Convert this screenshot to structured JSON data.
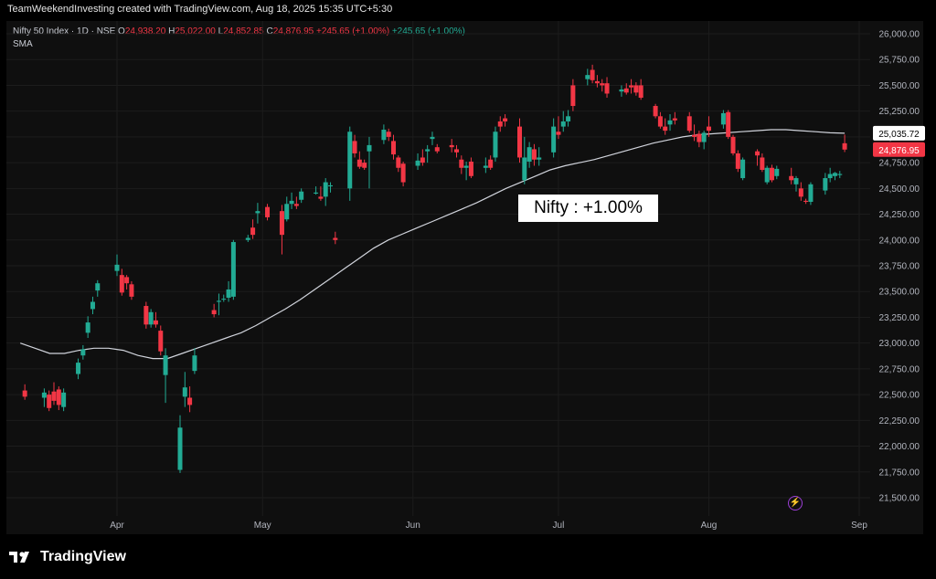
{
  "header": {
    "caption": "TeamWeekendInvesting created with TradingView.com, Aug 18, 2025 15:35 UTC+5:30",
    "symbol": "Nifty 50 Index · 1D · NSE",
    "o_label": "O",
    "o_value": "24,938.20",
    "h_label": "H",
    "h_value": "25,022.00",
    "l_label": "L",
    "l_value": "24,852.85",
    "c_label": "C",
    "c_value": "24,876.95",
    "change": "+245.65 (+1.00%)",
    "change2": "+245.65 (+1.00%)",
    "sma_label": "SMA"
  },
  "annotation": "Nifty : +1.00%",
  "brand": "TradingView",
  "colors": {
    "up": "#22ab94",
    "down": "#f23645",
    "sma": "#d1d4dc",
    "sma_tag": "#ffffff",
    "last_tag": "#f23645"
  },
  "chart_data": {
    "type": "candlestick",
    "ylim": [
      21400,
      26150
    ],
    "y_ticks": [
      "26,000.00",
      "25,750.00",
      "25,500.00",
      "25,250.00",
      "25,000.00",
      "24,750.00",
      "24,500.00",
      "24,250.00",
      "24,000.00",
      "23,750.00",
      "23,500.00",
      "23,250.00",
      "23,000.00",
      "22,750.00",
      "22,500.00",
      "22,250.00",
      "22,000.00",
      "21,750.00",
      "21,500.00"
    ],
    "y_tick_values": [
      26000,
      25750,
      25500,
      25250,
      25000,
      24750,
      24500,
      24250,
      24000,
      23750,
      23500,
      23250,
      23000,
      22750,
      22500,
      22250,
      22000,
      21750,
      21500
    ],
    "x_ticks": [
      "Apr",
      "May",
      "Jun",
      "Jul",
      "Aug",
      "Sep"
    ],
    "x_tick_dates": [
      "2025-04-01",
      "2025-05-01",
      "2025-06-01",
      "2025-07-01",
      "2025-08-01",
      "2025-09-01"
    ],
    "sma_last": "25,035.72",
    "last_price": "24,876.95",
    "sma_values": [
      23000,
      22950,
      22900,
      22900,
      22930,
      22950,
      22950,
      22930,
      22880,
      22850,
      22850,
      22900,
      22950,
      23000,
      23050,
      23100,
      23170,
      23250,
      23330,
      23420,
      23520,
      23620,
      23720,
      23820,
      23920,
      24000,
      24060,
      24120,
      24180,
      24240,
      24300,
      24360,
      24430,
      24500,
      24560,
      24620,
      24680,
      24720,
      24750,
      24780,
      24820,
      24860,
      24900,
      24940,
      24970,
      25000,
      25020,
      25030,
      25040,
      25050,
      25060,
      25070,
      25070,
      25060,
      25050,
      25040,
      25035.72
    ],
    "candles": [
      {
        "d": "2025-03-13",
        "o": 22540,
        "h": 22600,
        "l": 22450,
        "c": 22480
      },
      {
        "d": "2025-03-17",
        "o": 22470,
        "h": 22560,
        "l": 22380,
        "c": 22520
      },
      {
        "d": "2025-03-18",
        "o": 22500,
        "h": 22540,
        "l": 22340,
        "c": 22370
      },
      {
        "d": "2025-03-19",
        "o": 22530,
        "h": 22620,
        "l": 22400,
        "c": 22440
      },
      {
        "d": "2025-03-20",
        "o": 22550,
        "h": 22580,
        "l": 22350,
        "c": 22400
      },
      {
        "d": "2025-03-21",
        "o": 22380,
        "h": 22560,
        "l": 22340,
        "c": 22520
      },
      {
        "d": "2025-03-24",
        "o": 22700,
        "h": 22850,
        "l": 22650,
        "c": 22810
      },
      {
        "d": "2025-03-25",
        "o": 22880,
        "h": 22980,
        "l": 22840,
        "c": 22940
      },
      {
        "d": "2025-03-26",
        "o": 23100,
        "h": 23260,
        "l": 23050,
        "c": 23200
      },
      {
        "d": "2025-03-27",
        "o": 23330,
        "h": 23450,
        "l": 23280,
        "c": 23400
      },
      {
        "d": "2025-03-28",
        "o": 23510,
        "h": 23610,
        "l": 23450,
        "c": 23580
      },
      {
        "d": "2025-04-01",
        "o": 23700,
        "h": 23860,
        "l": 23650,
        "c": 23760
      },
      {
        "d": "2025-04-02",
        "o": 23660,
        "h": 23720,
        "l": 23460,
        "c": 23490
      },
      {
        "d": "2025-04-03",
        "o": 23640,
        "h": 23660,
        "l": 23520,
        "c": 23580
      },
      {
        "d": "2025-04-04",
        "o": 23570,
        "h": 23600,
        "l": 23420,
        "c": 23450
      },
      {
        "d": "2025-04-07",
        "o": 23360,
        "h": 23400,
        "l": 23140,
        "c": 23180
      },
      {
        "d": "2025-04-08",
        "o": 23180,
        "h": 23330,
        "l": 23150,
        "c": 23300
      },
      {
        "d": "2025-04-09",
        "o": 23220,
        "h": 23300,
        "l": 23150,
        "c": 23180
      },
      {
        "d": "2025-04-10",
        "o": 23120,
        "h": 23170,
        "l": 22880,
        "c": 22920
      },
      {
        "d": "2025-04-11",
        "o": 22690,
        "h": 22950,
        "l": 22420,
        "c": 22880
      },
      {
        "d": "2025-04-14",
        "o": 21770,
        "h": 22300,
        "l": 21740,
        "c": 22180
      },
      {
        "d": "2025-04-15",
        "o": 22480,
        "h": 22720,
        "l": 22380,
        "c": 22570
      },
      {
        "d": "2025-04-16",
        "o": 22470,
        "h": 22580,
        "l": 22330,
        "c": 22400
      },
      {
        "d": "2025-04-17",
        "o": 22730,
        "h": 22950,
        "l": 22700,
        "c": 22880
      },
      {
        "d": "2025-04-21",
        "o": 23320,
        "h": 23380,
        "l": 23250,
        "c": 23280
      },
      {
        "d": "2025-04-22",
        "o": 23400,
        "h": 23480,
        "l": 23270,
        "c": 23410
      },
      {
        "d": "2025-04-23",
        "o": 23430,
        "h": 23470,
        "l": 23400,
        "c": 23430
      },
      {
        "d": "2025-04-24",
        "o": 23440,
        "h": 23600,
        "l": 23400,
        "c": 23520
      },
      {
        "d": "2025-04-25",
        "o": 23450,
        "h": 24000,
        "l": 23420,
        "c": 23980
      },
      {
        "d": "2025-04-28",
        "o": 24000,
        "h": 24050,
        "l": 23980,
        "c": 24020
      },
      {
        "d": "2025-04-29",
        "o": 24120,
        "h": 24200,
        "l": 24010,
        "c": 24050
      },
      {
        "d": "2025-04-30",
        "o": 24260,
        "h": 24360,
        "l": 24160,
        "c": 24280
      },
      {
        "d": "2025-05-02",
        "o": 24320,
        "h": 24350,
        "l": 24190,
        "c": 24220
      },
      {
        "d": "2025-05-05",
        "o": 24280,
        "h": 24340,
        "l": 23860,
        "c": 24050
      },
      {
        "d": "2025-05-06",
        "o": 24200,
        "h": 24420,
        "l": 24180,
        "c": 24350
      },
      {
        "d": "2025-05-07",
        "o": 24350,
        "h": 24460,
        "l": 24300,
        "c": 24380
      },
      {
        "d": "2025-05-08",
        "o": 24350,
        "h": 24420,
        "l": 24300,
        "c": 24330
      },
      {
        "d": "2025-05-09",
        "o": 24390,
        "h": 24500,
        "l": 24360,
        "c": 24470
      },
      {
        "d": "2025-05-12",
        "o": 24450,
        "h": 24520,
        "l": 24440,
        "c": 24460
      },
      {
        "d": "2025-05-13",
        "o": 24420,
        "h": 24520,
        "l": 24380,
        "c": 24400
      },
      {
        "d": "2025-05-14",
        "o": 24420,
        "h": 24600,
        "l": 24330,
        "c": 24560
      },
      {
        "d": "2025-05-15",
        "o": 24520,
        "h": 24560,
        "l": 24460,
        "c": 24530
      },
      {
        "d": "2025-05-16",
        "o": 24020,
        "h": 24080,
        "l": 23960,
        "c": 24000
      },
      {
        "d": "2025-05-19",
        "o": 24500,
        "h": 25100,
        "l": 24380,
        "c": 25050
      },
      {
        "d": "2025-05-20",
        "o": 24960,
        "h": 25020,
        "l": 24800,
        "c": 24840
      },
      {
        "d": "2025-05-21",
        "o": 24780,
        "h": 24860,
        "l": 24690,
        "c": 24710
      },
      {
        "d": "2025-05-22",
        "o": 24750,
        "h": 24780,
        "l": 24680,
        "c": 24700
      },
      {
        "d": "2025-05-23",
        "o": 24860,
        "h": 25000,
        "l": 24500,
        "c": 24920
      },
      {
        "d": "2025-05-26",
        "o": 24970,
        "h": 25120,
        "l": 24930,
        "c": 25070
      },
      {
        "d": "2025-05-27",
        "o": 25050,
        "h": 25080,
        "l": 24960,
        "c": 25000
      },
      {
        "d": "2025-05-28",
        "o": 24960,
        "h": 25020,
        "l": 24780,
        "c": 24830
      },
      {
        "d": "2025-05-29",
        "o": 24800,
        "h": 24820,
        "l": 24660,
        "c": 24700
      },
      {
        "d": "2025-05-30",
        "o": 24740,
        "h": 24760,
        "l": 24520,
        "c": 24560
      },
      {
        "d": "2025-06-02",
        "o": 24720,
        "h": 24840,
        "l": 24680,
        "c": 24770
      },
      {
        "d": "2025-06-03",
        "o": 24800,
        "h": 24880,
        "l": 24720,
        "c": 24750
      },
      {
        "d": "2025-06-04",
        "o": 24860,
        "h": 24920,
        "l": 24750,
        "c": 24880
      },
      {
        "d": "2025-06-05",
        "o": 24980,
        "h": 25050,
        "l": 24920,
        "c": 25000
      },
      {
        "d": "2025-06-06",
        "o": 24900,
        "h": 24930,
        "l": 24840,
        "c": 24860
      },
      {
        "d": "2025-06-09",
        "o": 24920,
        "h": 24980,
        "l": 24850,
        "c": 24900
      },
      {
        "d": "2025-06-10",
        "o": 24880,
        "h": 24920,
        "l": 24800,
        "c": 24850
      },
      {
        "d": "2025-06-11",
        "o": 24780,
        "h": 24820,
        "l": 24640,
        "c": 24700
      },
      {
        "d": "2025-06-12",
        "o": 24700,
        "h": 24760,
        "l": 24580,
        "c": 24720
      },
      {
        "d": "2025-06-13",
        "o": 24760,
        "h": 24800,
        "l": 24600,
        "c": 24620
      },
      {
        "d": "2025-06-16",
        "o": 24700,
        "h": 24800,
        "l": 24650,
        "c": 24720
      },
      {
        "d": "2025-06-17",
        "o": 24780,
        "h": 24820,
        "l": 24680,
        "c": 24700
      },
      {
        "d": "2025-06-18",
        "o": 24800,
        "h": 25100,
        "l": 24760,
        "c": 25050
      },
      {
        "d": "2025-06-19",
        "o": 25150,
        "h": 25200,
        "l": 25050,
        "c": 25100
      },
      {
        "d": "2025-06-20",
        "o": 25180,
        "h": 25220,
        "l": 25100,
        "c": 25150
      },
      {
        "d": "2025-06-23",
        "o": 25100,
        "h": 25180,
        "l": 24750,
        "c": 24800
      },
      {
        "d": "2025-06-24",
        "o": 24580,
        "h": 25000,
        "l": 24540,
        "c": 24800
      },
      {
        "d": "2025-06-25",
        "o": 24760,
        "h": 24950,
        "l": 24700,
        "c": 24900
      },
      {
        "d": "2025-06-26",
        "o": 24880,
        "h": 24930,
        "l": 24720,
        "c": 24780
      },
      {
        "d": "2025-06-27",
        "o": 24780,
        "h": 24900,
        "l": 24720,
        "c": 24800
      },
      {
        "d": "2025-06-30",
        "o": 24850,
        "h": 25180,
        "l": 24800,
        "c": 25100
      },
      {
        "d": "2025-07-01",
        "o": 25050,
        "h": 25200,
        "l": 24980,
        "c": 25020
      },
      {
        "d": "2025-07-02",
        "o": 25100,
        "h": 25250,
        "l": 25050,
        "c": 25150
      },
      {
        "d": "2025-07-03",
        "o": 25150,
        "h": 25260,
        "l": 25100,
        "c": 25200
      },
      {
        "d": "2025-07-04",
        "o": 25500,
        "h": 25560,
        "l": 25250,
        "c": 25300
      },
      {
        "d": "2025-07-07",
        "o": 25560,
        "h": 25660,
        "l": 25500,
        "c": 25600
      },
      {
        "d": "2025-07-08",
        "o": 25650,
        "h": 25700,
        "l": 25520,
        "c": 25550
      },
      {
        "d": "2025-07-09",
        "o": 25540,
        "h": 25600,
        "l": 25480,
        "c": 25520
      },
      {
        "d": "2025-07-10",
        "o": 25520,
        "h": 25560,
        "l": 25440,
        "c": 25500
      },
      {
        "d": "2025-07-11",
        "o": 25520,
        "h": 25580,
        "l": 25380,
        "c": 25420
      },
      {
        "d": "2025-07-14",
        "o": 25440,
        "h": 25500,
        "l": 25390,
        "c": 25460
      },
      {
        "d": "2025-07-15",
        "o": 25470,
        "h": 25520,
        "l": 25410,
        "c": 25430
      },
      {
        "d": "2025-07-16",
        "o": 25500,
        "h": 25560,
        "l": 25420,
        "c": 25480
      },
      {
        "d": "2025-07-17",
        "o": 25500,
        "h": 25530,
        "l": 25400,
        "c": 25430
      },
      {
        "d": "2025-07-18",
        "o": 25500,
        "h": 25560,
        "l": 25360,
        "c": 25380
      },
      {
        "d": "2025-07-21",
        "o": 25300,
        "h": 25320,
        "l": 25180,
        "c": 25200
      },
      {
        "d": "2025-07-22",
        "o": 25200,
        "h": 25240,
        "l": 25080,
        "c": 25100
      },
      {
        "d": "2025-07-23",
        "o": 25100,
        "h": 25180,
        "l": 25020,
        "c": 25060
      },
      {
        "d": "2025-07-24",
        "o": 25120,
        "h": 25220,
        "l": 25060,
        "c": 25160
      },
      {
        "d": "2025-07-25",
        "o": 25180,
        "h": 25240,
        "l": 25120,
        "c": 25160
      },
      {
        "d": "2025-07-28",
        "o": 25200,
        "h": 25240,
        "l": 25040,
        "c": 25060
      },
      {
        "d": "2025-07-29",
        "o": 25020,
        "h": 25120,
        "l": 24960,
        "c": 25000
      },
      {
        "d": "2025-07-30",
        "o": 25030,
        "h": 25060,
        "l": 24900,
        "c": 24950
      },
      {
        "d": "2025-07-31",
        "o": 24950,
        "h": 25060,
        "l": 24880,
        "c": 25040
      },
      {
        "d": "2025-08-01",
        "o": 25100,
        "h": 25200,
        "l": 25000,
        "c": 25060
      },
      {
        "d": "2025-08-04",
        "o": 25120,
        "h": 25260,
        "l": 25080,
        "c": 25230
      },
      {
        "d": "2025-08-05",
        "o": 25240,
        "h": 25260,
        "l": 24980,
        "c": 25000
      },
      {
        "d": "2025-08-06",
        "o": 25000,
        "h": 25020,
        "l": 24820,
        "c": 24840
      },
      {
        "d": "2025-08-07",
        "o": 24840,
        "h": 24870,
        "l": 24660,
        "c": 24690
      },
      {
        "d": "2025-08-08",
        "o": 24600,
        "h": 24800,
        "l": 24580,
        "c": 24780
      },
      {
        "d": "2025-08-11",
        "o": 24860,
        "h": 24880,
        "l": 24720,
        "c": 24820
      },
      {
        "d": "2025-08-12",
        "o": 24800,
        "h": 24840,
        "l": 24660,
        "c": 24680
      },
      {
        "d": "2025-08-13",
        "o": 24560,
        "h": 24720,
        "l": 24540,
        "c": 24700
      },
      {
        "d": "2025-08-14",
        "o": 24700,
        "h": 24730,
        "l": 24560,
        "c": 24580
      },
      {
        "d": "2025-08-15",
        "o": 24620,
        "h": 24720,
        "l": 24590,
        "c": 24690
      },
      {
        "d": "2025-08-18",
        "o": 24620,
        "h": 24700,
        "l": 24540,
        "c": 24580
      },
      {
        "d": "2025-08-19",
        "o": 24540,
        "h": 24620,
        "l": 24470,
        "c": 24600
      },
      {
        "d": "2025-08-20",
        "o": 24500,
        "h": 24560,
        "l": 24380,
        "c": 24420
      },
      {
        "d": "2025-08-21",
        "o": 24380,
        "h": 24400,
        "l": 24350,
        "c": 24370
      },
      {
        "d": "2025-08-22",
        "o": 24370,
        "h": 24560,
        "l": 24340,
        "c": 24540
      },
      {
        "d": "2025-08-25",
        "o": 24480,
        "h": 24650,
        "l": 24440,
        "c": 24600
      },
      {
        "d": "2025-08-26",
        "o": 24600,
        "h": 24700,
        "l": 24560,
        "c": 24640
      },
      {
        "d": "2025-08-27",
        "o": 24620,
        "h": 24660,
        "l": 24580,
        "c": 24650
      },
      {
        "d": "2025-08-28",
        "o": 24630,
        "h": 24670,
        "l": 24600,
        "c": 24640
      },
      {
        "d": "2025-08-29",
        "o": 24938.2,
        "h": 25022,
        "l": 24852.85,
        "c": 24876.95
      }
    ]
  }
}
